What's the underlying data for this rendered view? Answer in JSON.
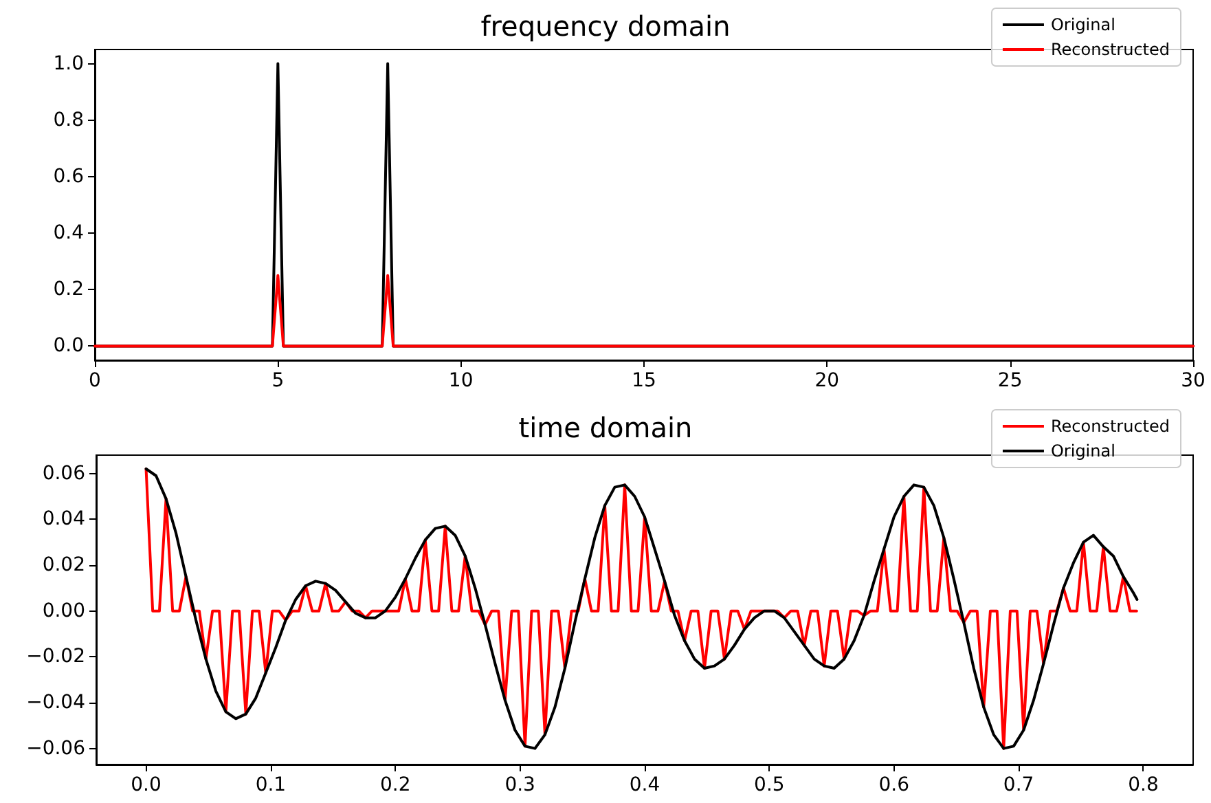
{
  "chart_data": [
    {
      "type": "line",
      "title": "frequency domain",
      "xlim": [
        0,
        30
      ],
      "xticks": [
        0,
        5,
        10,
        15,
        20,
        25,
        30
      ],
      "ylim": [
        -0.05,
        1.05
      ],
      "yticks": [
        {
          "value": 0,
          "label": "0.0"
        },
        {
          "value": 0.2,
          "label": "0.2"
        },
        {
          "value": 0.4,
          "label": "0.4"
        },
        {
          "value": 0.6,
          "label": "0.6"
        },
        {
          "value": 0.8,
          "label": "0.8"
        },
        {
          "value": 1,
          "label": "1.0"
        }
      ],
      "grid": false,
      "legend": "top right",
      "marker": "none",
      "series": [
        {
          "name": "Original",
          "color": "#000000",
          "x": [
            0,
            4.85,
            5,
            5.15,
            7.85,
            8,
            8.15,
            30
          ],
          "values": [
            0,
            0,
            1,
            0,
            0,
            1,
            0,
            0
          ]
        },
        {
          "name": "Reconstructed",
          "color": "#ff0000",
          "x": [
            0,
            4.85,
            5,
            5.15,
            7.85,
            8,
            8.15,
            30
          ],
          "values": [
            0,
            0,
            0.25,
            0,
            0,
            0.25,
            0,
            0
          ]
        }
      ]
    },
    {
      "type": "line",
      "title": "time domain",
      "xlim": [
        -0.04,
        0.84
      ],
      "xticks": [
        {
          "value": 0,
          "label": "0.0"
        },
        {
          "value": 0.1,
          "label": "0.1"
        },
        {
          "value": 0.2,
          "label": "0.2"
        },
        {
          "value": 0.3,
          "label": "0.3"
        },
        {
          "value": 0.4,
          "label": "0.4"
        },
        {
          "value": 0.5,
          "label": "0.5"
        },
        {
          "value": 0.6,
          "label": "0.6"
        },
        {
          "value": 0.7,
          "label": "0.7"
        },
        {
          "value": 0.8,
          "label": "0.8"
        }
      ],
      "ylim": [
        -0.067,
        0.068
      ],
      "yticks": [
        {
          "value": -0.06,
          "label": "−0.06"
        },
        {
          "value": -0.04,
          "label": "−0.04"
        },
        {
          "value": -0.02,
          "label": "−0.02"
        },
        {
          "value": 0,
          "label": "0.00"
        },
        {
          "value": 0.02,
          "label": "0.02"
        },
        {
          "value": 0.04,
          "label": "0.04"
        },
        {
          "value": 0.06,
          "label": "0.06"
        }
      ],
      "grid": false,
      "legend": "top right",
      "marker": "none",
      "series": [
        {
          "name": "Reconstructed",
          "color": "#ff0000",
          "x": [
            0,
            0.0053,
            0.0107,
            0.016,
            0.0213,
            0.0267,
            0.032,
            0.0373,
            0.0427,
            0.048,
            0.0533,
            0.0587,
            0.064,
            0.0693,
            0.0747,
            0.08,
            0.0853,
            0.0907,
            0.096,
            0.1013,
            0.1067,
            0.112,
            0.1173,
            0.1227,
            0.128,
            0.1333,
            0.1387,
            0.144,
            0.1493,
            0.1547,
            0.16,
            0.1653,
            0.1707,
            0.176,
            0.1813,
            0.1867,
            0.192,
            0.1973,
            0.2027,
            0.208,
            0.2133,
            0.2187,
            0.224,
            0.2293,
            0.2347,
            0.24,
            0.2453,
            0.2507,
            0.256,
            0.2613,
            0.2667,
            0.272,
            0.2773,
            0.2827,
            0.288,
            0.2933,
            0.2987,
            0.304,
            0.3093,
            0.3147,
            0.32,
            0.3253,
            0.3307,
            0.336,
            0.3413,
            0.3467,
            0.352,
            0.3573,
            0.3627,
            0.368,
            0.3733,
            0.3787,
            0.384,
            0.3893,
            0.3947,
            0.4,
            0.4053,
            0.4107,
            0.416,
            0.4213,
            0.4267,
            0.432,
            0.4373,
            0.4427,
            0.448,
            0.4533,
            0.4587,
            0.464,
            0.4693,
            0.4747,
            0.48,
            0.4853,
            0.4907,
            0.496,
            0.5013,
            0.5067,
            0.512,
            0.5173,
            0.5227,
            0.528,
            0.5333,
            0.5387,
            0.544,
            0.5493,
            0.5547,
            0.56,
            0.5653,
            0.5707,
            0.576,
            0.5813,
            0.5867,
            0.592,
            0.5973,
            0.6027,
            0.608,
            0.6133,
            0.6187,
            0.624,
            0.6293,
            0.6347,
            0.64,
            0.6453,
            0.6507,
            0.656,
            0.6613,
            0.6667,
            0.672,
            0.6773,
            0.6827,
            0.688,
            0.6933,
            0.6987,
            0.704,
            0.7093,
            0.7147,
            0.72,
            0.7253,
            0.7307,
            0.736,
            0.7413,
            0.7467,
            0.752,
            0.7573,
            0.7627,
            0.768,
            0.7733,
            0.7787,
            0.784,
            0.7893,
            0.7947
          ],
          "values": [
            0.062,
            0,
            0,
            0.049,
            0,
            0,
            0.015,
            0,
            0,
            -0.021,
            0,
            0,
            -0.044,
            0,
            0,
            -0.045,
            0,
            0,
            -0.027,
            0,
            0,
            -0.004,
            0,
            0,
            0.011,
            0,
            0,
            0.012,
            0,
            0,
            0.004,
            0,
            0,
            -0.003,
            0,
            0,
            0,
            0,
            0,
            0.014,
            0,
            0,
            0.031,
            0,
            0,
            0.037,
            0,
            0,
            0.024,
            0,
            0,
            -0.006,
            0,
            0,
            -0.039,
            0,
            0,
            -0.059,
            0,
            0,
            -0.054,
            0,
            0,
            -0.025,
            0,
            0,
            0.014,
            0,
            0,
            0.046,
            0,
            0,
            0.055,
            0,
            0,
            0.041,
            0,
            0,
            0.013,
            0,
            0,
            -0.013,
            0,
            0,
            -0.025,
            0,
            0,
            -0.021,
            0,
            0,
            -0.008,
            0,
            0,
            0,
            0,
            0,
            -0.003,
            0,
            0,
            -0.015,
            0,
            0,
            -0.024,
            0,
            0,
            -0.021,
            0,
            0,
            -0.002,
            0,
            0,
            0.027,
            0,
            0,
            0.05,
            0,
            0,
            0.054,
            0,
            0,
            0.032,
            0,
            0,
            -0.005,
            0,
            0,
            -0.042,
            0,
            0,
            -0.06,
            0,
            0,
            -0.052,
            0,
            0,
            -0.023,
            0,
            0,
            0.01,
            0,
            0,
            0.03,
            0,
            0,
            0.028,
            0,
            0,
            0.015,
            0,
            0
          ]
        },
        {
          "name": "Original",
          "color": "#000000",
          "x": [
            0,
            0.008,
            0.016,
            0.024,
            0.032,
            0.04,
            0.048,
            0.056,
            0.064,
            0.072,
            0.08,
            0.088,
            0.096,
            0.104,
            0.112,
            0.12,
            0.128,
            0.136,
            0.144,
            0.152,
            0.16,
            0.168,
            0.176,
            0.184,
            0.192,
            0.2,
            0.208,
            0.216,
            0.224,
            0.232,
            0.24,
            0.248,
            0.256,
            0.264,
            0.272,
            0.28,
            0.288,
            0.296,
            0.304,
            0.312,
            0.32,
            0.328,
            0.336,
            0.344,
            0.352,
            0.36,
            0.368,
            0.376,
            0.384,
            0.392,
            0.4,
            0.408,
            0.416,
            0.424,
            0.432,
            0.44,
            0.448,
            0.456,
            0.464,
            0.472,
            0.48,
            0.488,
            0.496,
            0.504,
            0.512,
            0.52,
            0.528,
            0.536,
            0.544,
            0.552,
            0.56,
            0.568,
            0.576,
            0.584,
            0.592,
            0.6,
            0.608,
            0.616,
            0.624,
            0.632,
            0.64,
            0.648,
            0.656,
            0.664,
            0.672,
            0.68,
            0.688,
            0.696,
            0.704,
            0.712,
            0.72,
            0.728,
            0.736,
            0.744,
            0.752,
            0.76,
            0.768,
            0.776,
            0.784,
            0.792,
            0.795
          ],
          "values": [
            0.062,
            0.059,
            0.049,
            0.034,
            0.015,
            -0.004,
            -0.021,
            -0.035,
            -0.044,
            -0.047,
            -0.045,
            -0.038,
            -0.027,
            -0.016,
            -0.004,
            0.005,
            0.011,
            0.013,
            0.012,
            0.009,
            0.004,
            -0.001,
            -0.003,
            -0.003,
            0,
            0.006,
            0.014,
            0.023,
            0.031,
            0.036,
            0.037,
            0.033,
            0.024,
            0.01,
            -0.006,
            -0.023,
            -0.039,
            -0.052,
            -0.059,
            -0.06,
            -0.054,
            -0.042,
            -0.025,
            -0.005,
            0.014,
            0.032,
            0.046,
            0.054,
            0.055,
            0.05,
            0.041,
            0.027,
            0.013,
            -0.002,
            -0.013,
            -0.021,
            -0.025,
            -0.024,
            -0.021,
            -0.015,
            -0.008,
            -0.003,
            0,
            0,
            -0.003,
            -0.009,
            -0.015,
            -0.021,
            -0.024,
            -0.025,
            -0.021,
            -0.013,
            -0.002,
            0.013,
            0.027,
            0.041,
            0.05,
            0.055,
            0.054,
            0.046,
            0.032,
            0.014,
            -0.005,
            -0.025,
            -0.042,
            -0.054,
            -0.06,
            -0.059,
            -0.052,
            -0.039,
            -0.023,
            -0.006,
            0.01,
            0.021,
            0.03,
            0.033,
            0.028,
            0.024,
            0.015,
            0.008,
            0.005
          ]
        }
      ]
    }
  ]
}
